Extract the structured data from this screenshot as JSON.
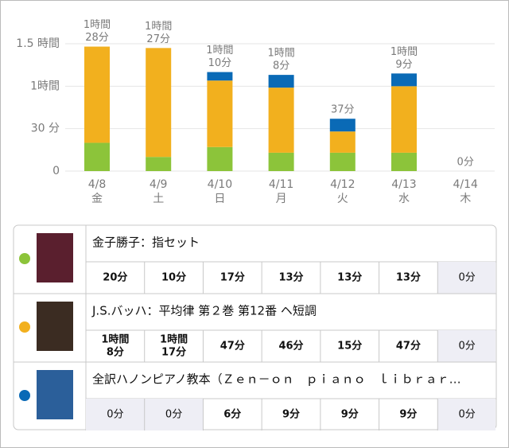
{
  "chart_data": {
    "type": "bar",
    "stacked": true,
    "categories": [
      [
        "4/8",
        "金"
      ],
      [
        "4/9",
        "土"
      ],
      [
        "4/10",
        "日"
      ],
      [
        "4/11",
        "月"
      ],
      [
        "4/12",
        "火"
      ],
      [
        "4/13",
        "水"
      ],
      [
        "4/14",
        "木"
      ]
    ],
    "series": [
      {
        "name": "金子勝子：指セット",
        "color": "#8cc43a",
        "values": [
          20,
          10,
          17,
          13,
          13,
          13,
          0
        ],
        "value_labels": [
          [
            "20分"
          ],
          [
            "10分"
          ],
          [
            "17分"
          ],
          [
            "13分"
          ],
          [
            "13分"
          ],
          [
            "13分"
          ],
          [
            "0分"
          ]
        ]
      },
      {
        "name": "J.S.バッハ：平均律 第２巻 第12番 ヘ短調",
        "color": "#f2b01e",
        "values": [
          68,
          77,
          47,
          46,
          15,
          47,
          0
        ],
        "value_labels": [
          [
            "1時間",
            "8分"
          ],
          [
            "1時間",
            "17分"
          ],
          [
            "47分"
          ],
          [
            "46分"
          ],
          [
            "15分"
          ],
          [
            "47分"
          ],
          [
            "0分"
          ]
        ]
      },
      {
        "name": "全訳ハノンピアノ教本（Ｚｅｎ－ｏｎ　ｐｉａｎｏ　ｌｉｂｒａｒ…",
        "color": "#0a6ab6",
        "values": [
          0,
          0,
          6,
          9,
          9,
          9,
          0
        ],
        "value_labels": [
          [
            "0分"
          ],
          [
            "0分"
          ],
          [
            "6分"
          ],
          [
            "9分"
          ],
          [
            "9分"
          ],
          [
            "9分"
          ],
          [
            "0分"
          ]
        ]
      }
    ],
    "totals": {
      "values": [
        88,
        87,
        70,
        68,
        37,
        69,
        0
      ],
      "value_labels": [
        [
          "1時間",
          "28分"
        ],
        [
          "1時間",
          "27分"
        ],
        [
          "1時間",
          "10分"
        ],
        [
          "1時間",
          "8分"
        ],
        [
          "37分"
        ],
        [
          "1時間",
          "9分"
        ],
        [
          "0分"
        ]
      ]
    },
    "ylim": [
      0,
      90
    ],
    "yticks": [
      0,
      {
        "value": 30,
        "label": "30 分"
      },
      {
        "value": 60,
        "label": "1時間"
      },
      {
        "value": 90,
        "label": "1.5 時間"
      }
    ],
    "grid": true
  }
}
